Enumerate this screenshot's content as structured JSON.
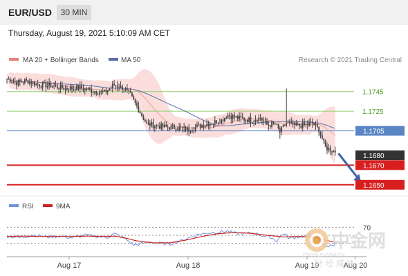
{
  "header": {
    "symbol": "EUR/USD",
    "timeframe": "30 MIN"
  },
  "datetime": "Thursday, August 19, 2021 5:10:09 AM CET",
  "legend": {
    "ma_bb": "MA 20 + Bollinger Bands",
    "ma50": "MA 50",
    "credit": "Research © 2021 Trading Central"
  },
  "rsi_legend": {
    "rsi": "RSI",
    "ma9": "9MA"
  },
  "watermark": {
    "brand": "中金网",
    "slogan": "财 经 媒 体",
    "domain": "CNGOLD.COM.CN"
  },
  "colors": {
    "candle": "#444444",
    "bb_fill": "#f9d3d0",
    "ma20": "#e5827c",
    "ma50": "#5b6fa7",
    "green_level": "#8fcf6c",
    "blue_level": "#5b86c5",
    "red_level": "#d81f1f",
    "last_price": "#333333",
    "arrow": "#3e63a6",
    "rsi": "#6f93d8",
    "rsi_ma": "#cc2222",
    "label_green": "#4e9b2b"
  },
  "chart_data": [
    {
      "type": "candlestick",
      "title": "EUR/USD 30 MIN",
      "xlabel": "",
      "ylabel": "",
      "x_ticks": [
        "Aug 17",
        "Aug 18",
        "Aug 19",
        "Aug 20"
      ],
      "ylim": [
        1.164,
        1.1768
      ],
      "grid": false,
      "legend_position": "top-left",
      "series": [
        {
          "name": "MA 20 + Bollinger Bands",
          "style": "line+band"
        },
        {
          "name": "MA 50",
          "style": "line"
        }
      ],
      "price_path": [
        [
          0,
          1.1758
        ],
        [
          6,
          1.1754
        ],
        [
          12,
          1.1756
        ],
        [
          20,
          1.1752
        ],
        [
          28,
          1.1751
        ],
        [
          36,
          1.1748
        ],
        [
          44,
          1.1749
        ],
        [
          52,
          1.1746
        ],
        [
          60,
          1.1744
        ],
        [
          66,
          1.1752
        ],
        [
          72,
          1.1748
        ],
        [
          76,
          1.1741
        ],
        [
          82,
          1.1724
        ],
        [
          86,
          1.1712
        ],
        [
          96,
          1.1709
        ],
        [
          106,
          1.1708
        ],
        [
          112,
          1.1706
        ],
        [
          118,
          1.171
        ],
        [
          126,
          1.1713
        ],
        [
          132,
          1.1716
        ],
        [
          136,
          1.1721
        ],
        [
          142,
          1.1718
        ],
        [
          150,
          1.1716
        ],
        [
          156,
          1.1718
        ],
        [
          160,
          1.1711
        ],
        [
          165,
          1.1712
        ],
        [
          168,
          1.1704
        ],
        [
          172,
          1.1713
        ],
        [
          178,
          1.171
        ],
        [
          184,
          1.1711
        ],
        [
          188,
          1.1713
        ],
        [
          192,
          1.1706
        ],
        [
          196,
          1.1688
        ],
        [
          202,
          1.1684
        ]
      ],
      "levels": [
        {
          "label": "1.1745",
          "value": 1.1745,
          "kind": "resistance"
        },
        {
          "label": "1.1725",
          "value": 1.1725,
          "kind": "resistance"
        },
        {
          "label": "1.1705",
          "value": 1.1705,
          "kind": "pivot"
        },
        {
          "label": "1.1680",
          "value": 1.168,
          "kind": "last_price"
        },
        {
          "label": "1.1670",
          "value": 1.167,
          "kind": "support"
        },
        {
          "label": "1.1650",
          "value": 1.165,
          "kind": "support"
        }
      ],
      "forecast_arrow": {
        "from": [
          204,
          1.1682
        ],
        "to": [
          218,
          1.1652
        ]
      }
    },
    {
      "type": "line",
      "title": "RSI",
      "series": [
        {
          "name": "RSI"
        },
        {
          "name": "9MA"
        }
      ],
      "ylim": [
        0,
        100
      ],
      "reference_levels": [
        70,
        50,
        30
      ],
      "tick_labels": [
        "70"
      ],
      "rsi_path": [
        [
          0,
          48
        ],
        [
          8,
          44
        ],
        [
          16,
          51
        ],
        [
          24,
          46
        ],
        [
          32,
          48
        ],
        [
          40,
          44
        ],
        [
          48,
          50
        ],
        [
          56,
          47
        ],
        [
          62,
          45
        ],
        [
          66,
          54
        ],
        [
          70,
          47
        ],
        [
          74,
          38
        ],
        [
          78,
          26
        ],
        [
          82,
          28
        ],
        [
          88,
          34
        ],
        [
          94,
          30
        ],
        [
          100,
          28
        ],
        [
          106,
          35
        ],
        [
          112,
          44
        ],
        [
          118,
          52
        ],
        [
          124,
          56
        ],
        [
          130,
          58
        ],
        [
          136,
          60
        ],
        [
          140,
          55
        ],
        [
          146,
          54
        ],
        [
          152,
          56
        ],
        [
          158,
          48
        ],
        [
          162,
          46
        ],
        [
          166,
          36
        ],
        [
          170,
          55
        ],
        [
          174,
          42
        ],
        [
          178,
          46
        ],
        [
          182,
          47
        ],
        [
          186,
          52
        ],
        [
          190,
          44
        ],
        [
          194,
          30
        ],
        [
          198,
          22
        ],
        [
          202,
          27
        ]
      ],
      "ma_path": [
        [
          0,
          47
        ],
        [
          10,
          48
        ],
        [
          20,
          47
        ],
        [
          30,
          47
        ],
        [
          40,
          47
        ],
        [
          50,
          48
        ],
        [
          60,
          47
        ],
        [
          66,
          48
        ],
        [
          72,
          44
        ],
        [
          80,
          36
        ],
        [
          90,
          31
        ],
        [
          100,
          31
        ],
        [
          110,
          38
        ],
        [
          120,
          47
        ],
        [
          130,
          54
        ],
        [
          140,
          57
        ],
        [
          150,
          55
        ],
        [
          160,
          50
        ],
        [
          170,
          46
        ],
        [
          180,
          47
        ],
        [
          190,
          46
        ],
        [
          196,
          38
        ],
        [
          202,
          32
        ]
      ]
    }
  ]
}
